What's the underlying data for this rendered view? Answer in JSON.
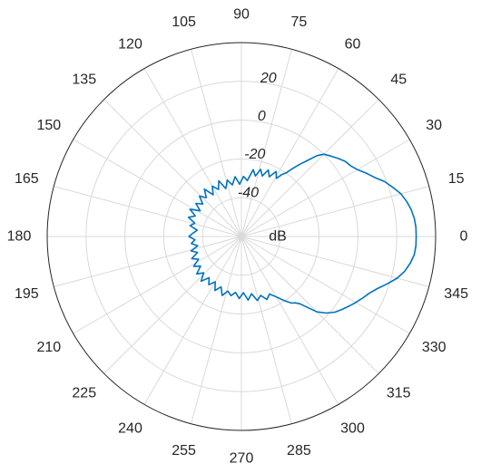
{
  "chart_data": {
    "type": "line",
    "coordinate_system": "polar",
    "theta_unit": "degrees",
    "theta_zero_location": "right",
    "theta_direction": "counterclockwise",
    "theta_ticks": [
      0,
      15,
      30,
      45,
      60,
      75,
      90,
      105,
      120,
      135,
      150,
      165,
      180,
      195,
      210,
      225,
      240,
      255,
      270,
      285,
      300,
      315,
      330,
      345
    ],
    "r_unit_label": "dB",
    "r_range": [
      -60,
      40
    ],
    "r_ticks": [
      -40,
      -20,
      0,
      20
    ],
    "r_tick_label_angle_deg": 80,
    "grid": true,
    "colors": {
      "series": "#0072bd",
      "grid": "#d9d9d9",
      "axis": "#262626"
    },
    "series": [
      {
        "points": [
          [
            0,
            30
          ],
          [
            3,
            30
          ],
          [
            6,
            29.5
          ],
          [
            9,
            28.5
          ],
          [
            12,
            27
          ],
          [
            15,
            25
          ],
          [
            18,
            22
          ],
          [
            21,
            19
          ],
          [
            24,
            15
          ],
          [
            27,
            12
          ],
          [
            30,
            9
          ],
          [
            33,
            7
          ],
          [
            36,
            6
          ],
          [
            39,
            4
          ],
          [
            42,
            2
          ],
          [
            45,
            0
          ],
          [
            47,
            -3
          ],
          [
            49,
            -8
          ],
          [
            51,
            -12
          ],
          [
            53,
            -16
          ],
          [
            55,
            -20
          ],
          [
            57,
            -22
          ],
          [
            59,
            -25
          ],
          [
            62,
            -22
          ],
          [
            65,
            -26
          ],
          [
            68,
            -23
          ],
          [
            71,
            -27
          ],
          [
            74,
            -24
          ],
          [
            77,
            -28
          ],
          [
            80,
            -25
          ],
          [
            84,
            -31
          ],
          [
            88,
            -29
          ],
          [
            92,
            -33
          ],
          [
            96,
            -29
          ],
          [
            100,
            -33
          ],
          [
            104,
            -30
          ],
          [
            108,
            -34
          ],
          [
            112,
            -29
          ],
          [
            116,
            -33
          ],
          [
            120,
            -30
          ],
          [
            124,
            -34
          ],
          [
            128,
            -29
          ],
          [
            132,
            -33
          ],
          [
            136,
            -30
          ],
          [
            140,
            -34
          ],
          [
            144,
            -31
          ],
          [
            148,
            -35
          ],
          [
            152,
            -30
          ],
          [
            156,
            -34
          ],
          [
            160,
            -31
          ],
          [
            164,
            -35
          ],
          [
            168,
            -33
          ],
          [
            172,
            -37
          ],
          [
            176,
            -35
          ],
          [
            180,
            -33
          ],
          [
            184,
            -36
          ],
          [
            188,
            -34
          ],
          [
            192,
            -37
          ],
          [
            196,
            -33
          ],
          [
            200,
            -36
          ],
          [
            204,
            -32
          ],
          [
            208,
            -35
          ],
          [
            212,
            -31
          ],
          [
            216,
            -34
          ],
          [
            220,
            -30
          ],
          [
            224,
            -33
          ],
          [
            228,
            -29
          ],
          [
            232,
            -33
          ],
          [
            236,
            -30
          ],
          [
            240,
            -33
          ],
          [
            244,
            -29
          ],
          [
            248,
            -32
          ],
          [
            252,
            -28
          ],
          [
            256,
            -31
          ],
          [
            260,
            -29
          ],
          [
            264,
            -31
          ],
          [
            268,
            -28
          ],
          [
            272,
            -31
          ],
          [
            276,
            -27
          ],
          [
            280,
            -30
          ],
          [
            284,
            -26
          ],
          [
            288,
            -28
          ],
          [
            292,
            -25
          ],
          [
            296,
            -27
          ],
          [
            300,
            -24
          ],
          [
            303,
            -21
          ],
          [
            305,
            -19
          ],
          [
            307,
            -17
          ],
          [
            309,
            -16
          ],
          [
            311,
            -14
          ],
          [
            313,
            -10
          ],
          [
            315,
            -5
          ],
          [
            318,
            -1
          ],
          [
            321,
            2
          ],
          [
            324,
            4
          ],
          [
            327,
            6
          ],
          [
            330,
            8
          ],
          [
            333,
            10
          ],
          [
            336,
            12
          ],
          [
            339,
            15
          ],
          [
            342,
            19
          ],
          [
            345,
            23
          ],
          [
            348,
            26
          ],
          [
            351,
            28
          ],
          [
            354,
            29.5
          ],
          [
            357,
            30
          ],
          [
            360,
            30
          ]
        ]
      }
    ]
  }
}
